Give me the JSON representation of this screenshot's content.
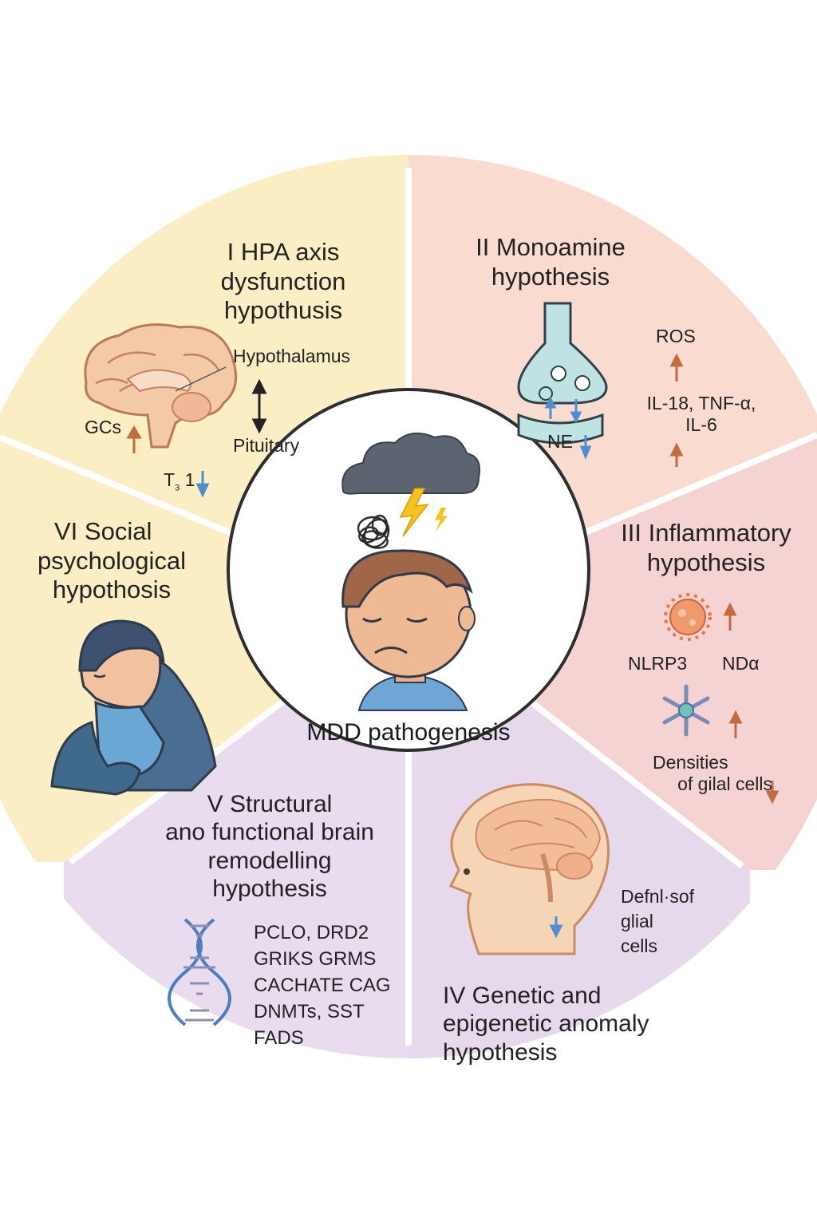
{
  "center": {
    "title": "MDD pathogenesis"
  },
  "sectors": {
    "hpa": {
      "title_lines": [
        "I HPA axis",
        "dysfunction",
        "hypothusis"
      ],
      "hypothalamus": "Hypothalamus",
      "pituitary": "Pituitary",
      "gcs": "GCs",
      "t3_main": "T",
      "t3_sub": "3",
      "t3_suffix": "1"
    },
    "monoamine": {
      "title_lines": [
        "II Monoamine",
        "hypothesis"
      ],
      "ne": "NE",
      "ros": "ROS",
      "cytokines_line1": "IL-18, TNF-α,",
      "cytokines_line2": "IL-6"
    },
    "inflammatory": {
      "title_lines": [
        "III Inflammatory",
        "hypothesis"
      ],
      "nlrp3": "NLRP3",
      "nd_alpha": "NDα",
      "densities_line1": "Densities",
      "densities_line2": "of gilal cells"
    },
    "genetic": {
      "title_lines": [
        "IV Genetic and",
        "epigenetic anomaly",
        "hypothesis"
      ],
      "glial_lines": [
        "Defnl·sof",
        "glial",
        "cells"
      ]
    },
    "structural": {
      "title_lines": [
        "V Structural",
        "ano functional brain",
        "remodelling",
        "hypothesis"
      ],
      "genes": [
        "PCLO, DRD2",
        "GRIKS GRMS",
        "CACHATE CAG",
        "DNMTs, SST",
        "FADS"
      ]
    },
    "social": {
      "title_lines": [
        "VI Social",
        "psychological",
        "hypothosis"
      ]
    }
  },
  "colors": {
    "hpa": "#fbeec4",
    "monoamine": "#fadbcf",
    "inflammatory": "#f6d3d3",
    "genetic": "#e7daeb",
    "structural": "#e8dcee",
    "social": "#fbeec4",
    "arrow_up": "#c46a3c",
    "arrow_down": "#4f8fd0"
  }
}
